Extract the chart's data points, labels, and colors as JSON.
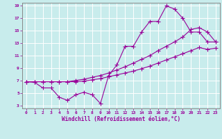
{
  "xlabel": "Windchill (Refroidissement éolien,°C)",
  "background_color": "#c8ecec",
  "line_color": "#990099",
  "grid_color": "#ffffff",
  "xlim": [
    -0.5,
    23.5
  ],
  "ylim": [
    2.5,
    19.5
  ],
  "xticks": [
    0,
    1,
    2,
    3,
    4,
    5,
    6,
    7,
    8,
    9,
    10,
    11,
    12,
    13,
    14,
    15,
    16,
    17,
    18,
    19,
    20,
    21,
    22,
    23
  ],
  "yticks": [
    3,
    5,
    7,
    9,
    11,
    13,
    15,
    17,
    19
  ],
  "line1_x": [
    0,
    1,
    2,
    3,
    4,
    5,
    6,
    7,
    8,
    9,
    10,
    11,
    12,
    13,
    14,
    15,
    16,
    17,
    18,
    19,
    20,
    21,
    22,
    23
  ],
  "line1_y": [
    6.8,
    6.7,
    5.8,
    5.8,
    4.3,
    3.8,
    4.7,
    5.1,
    4.7,
    3.3,
    7.8,
    9.5,
    12.5,
    12.5,
    14.8,
    16.5,
    16.5,
    19.0,
    18.5,
    17.0,
    14.8,
    14.8,
    13.2,
    13.2
  ],
  "line2_x": [
    0,
    1,
    2,
    3,
    4,
    5,
    6,
    7,
    8,
    9,
    10,
    11,
    12,
    13,
    14,
    15,
    16,
    17,
    18,
    19,
    20,
    21,
    22,
    23
  ],
  "line2_y": [
    6.8,
    6.8,
    6.8,
    6.8,
    6.8,
    6.8,
    7.0,
    7.2,
    7.5,
    7.8,
    8.2,
    8.7,
    9.2,
    9.8,
    10.4,
    11.0,
    11.8,
    12.5,
    13.2,
    14.0,
    15.2,
    15.5,
    14.8,
    13.2
  ],
  "line3_x": [
    0,
    1,
    2,
    3,
    4,
    5,
    6,
    7,
    8,
    9,
    10,
    11,
    12,
    13,
    14,
    15,
    16,
    17,
    18,
    19,
    20,
    21,
    22,
    23
  ],
  "line3_y": [
    6.8,
    6.8,
    6.8,
    6.8,
    6.8,
    6.8,
    6.8,
    6.9,
    7.1,
    7.3,
    7.6,
    7.9,
    8.2,
    8.5,
    8.9,
    9.3,
    9.8,
    10.3,
    10.8,
    11.3,
    11.8,
    12.3,
    12.0,
    12.2
  ]
}
